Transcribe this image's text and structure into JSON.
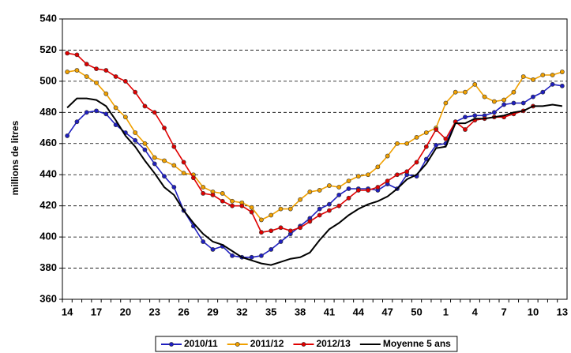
{
  "chart_data": {
    "type": "line",
    "y_label": "millions de litres",
    "categories": [
      "14",
      null,
      null,
      "17",
      null,
      null,
      "20",
      null,
      null,
      "23",
      null,
      null,
      "26",
      null,
      null,
      "29",
      null,
      null,
      "32",
      null,
      null,
      "35",
      null,
      null,
      "38",
      null,
      null,
      "41",
      null,
      null,
      "44",
      null,
      null,
      "47",
      null,
      null,
      "50",
      null,
      null,
      "1",
      null,
      null,
      "4",
      null,
      null,
      "7",
      null,
      null,
      "10",
      null,
      null,
      "13"
    ],
    "series": [
      {
        "name": "2010/11",
        "color": "#1f1fbf",
        "markers": true,
        "values": [
          465,
          474,
          480,
          481,
          479,
          472,
          467,
          462,
          456,
          447,
          439,
          432,
          417,
          407,
          397,
          392,
          394,
          388,
          387,
          387,
          388,
          392,
          397,
          402,
          407,
          412,
          418,
          421,
          427,
          431,
          431,
          431,
          430,
          434,
          431,
          440,
          439,
          450,
          459,
          460,
          474,
          477,
          478,
          478,
          480,
          485,
          486,
          486,
          490,
          493,
          498,
          497
        ]
      },
      {
        "name": "2011/12",
        "color": "#f0a000",
        "markers": true,
        "values": [
          506,
          507,
          503,
          499,
          492,
          483,
          477,
          467,
          460,
          451,
          449,
          446,
          441,
          440,
          432,
          429,
          428,
          423,
          422,
          419,
          411,
          414,
          418,
          418,
          424,
          429,
          430,
          433,
          432,
          436,
          439,
          440,
          445,
          452,
          460,
          460,
          464,
          467,
          470,
          486,
          493,
          493,
          498,
          490,
          487,
          488,
          493,
          503,
          501,
          504,
          504,
          506
        ]
      },
      {
        "name": "2012/13",
        "color": "#e00000",
        "markers": true,
        "values": [
          518,
          517,
          511,
          508,
          507,
          503,
          500,
          493,
          484,
          480,
          470,
          458,
          448,
          438,
          428,
          427,
          423,
          420,
          420,
          416,
          403,
          404,
          406,
          404,
          406,
          410,
          414,
          417,
          420,
          425,
          430,
          430,
          432,
          436,
          440,
          442,
          448,
          458,
          469,
          463,
          474,
          469,
          475,
          476,
          477,
          477,
          479,
          481,
          484,
          null,
          null,
          null
        ]
      },
      {
        "name": "Moyenne 5 ans",
        "color": "#000000",
        "markers": false,
        "values": [
          483,
          489,
          489,
          488,
          484,
          475,
          465,
          458,
          449,
          441,
          432,
          427,
          417,
          409,
          402,
          397,
          395,
          391,
          387,
          385,
          383,
          382,
          384,
          386,
          387,
          390,
          398,
          405,
          409,
          414,
          418,
          421,
          423,
          426,
          431,
          437,
          440,
          447,
          457,
          458,
          473,
          473,
          476,
          476,
          477,
          478,
          480,
          481,
          484,
          484,
          485,
          484
        ]
      }
    ],
    "ylim": [
      360,
      540
    ],
    "yticks": [
      360,
      380,
      400,
      420,
      440,
      460,
      480,
      500,
      520,
      540
    ],
    "grid": true,
    "legend": "bottom"
  }
}
